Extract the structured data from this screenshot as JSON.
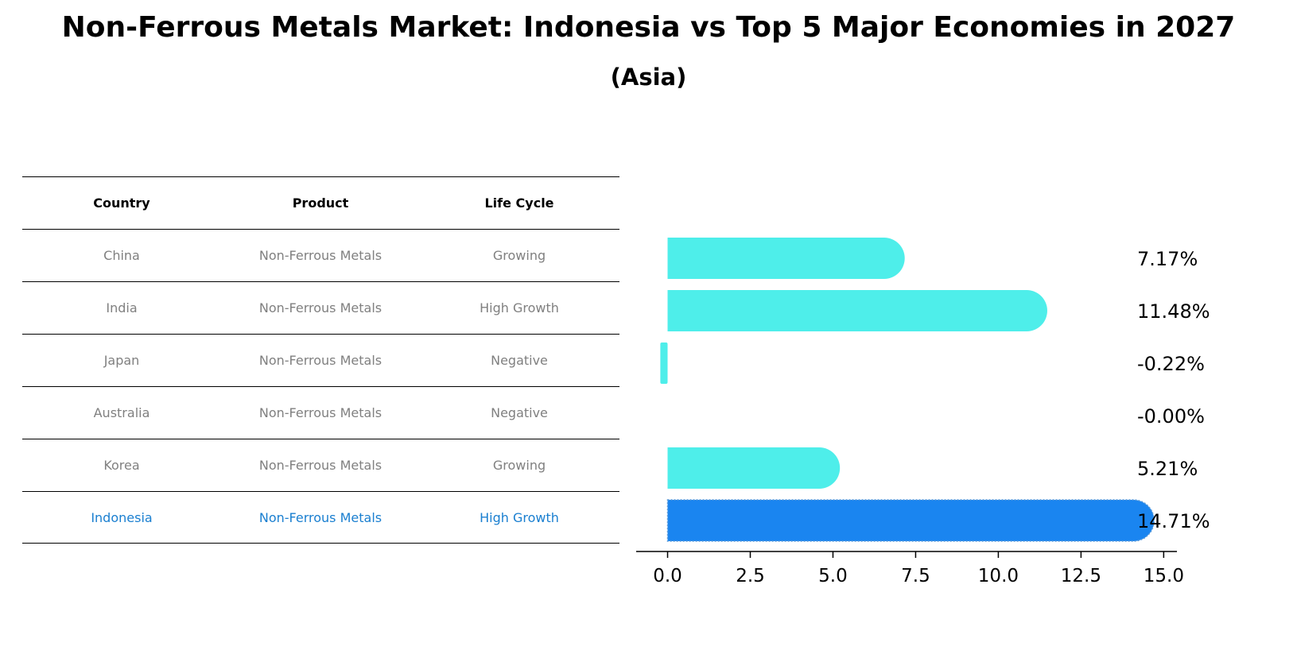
{
  "title": "Non-Ferrous Metals Market: Indonesia vs Top 5 Major Economies in 2027",
  "subtitle": "(Asia)",
  "table": {
    "headers": [
      "Country",
      "Product",
      "Life Cycle"
    ],
    "rows": [
      [
        "China",
        "Non-Ferrous Metals",
        "Growing"
      ],
      [
        "India",
        "Non-Ferrous Metals",
        "High Growth"
      ],
      [
        "Japan",
        "Non-Ferrous Metals",
        "Negative"
      ],
      [
        "Australia",
        "Non-Ferrous Metals",
        "Negative"
      ],
      [
        "Korea",
        "Non-Ferrous Metals",
        "Growing"
      ],
      [
        "Indonesia",
        "Non-Ferrous Metals",
        "High Growth"
      ]
    ]
  },
  "colors": {
    "bar": "#4eeeea",
    "highlight_bar": "#1a85f0",
    "highlight_text": "#1a7fd0",
    "muted_text": "#808080"
  },
  "chart_data": {
    "type": "bar",
    "orientation": "horizontal",
    "categories": [
      "China",
      "India",
      "Japan",
      "Australia",
      "Korea",
      "Indonesia"
    ],
    "values": [
      7.17,
      11.48,
      -0.22,
      -0.0,
      5.21,
      14.71
    ],
    "value_labels": [
      "7.17%",
      "11.48%",
      "-0.22%",
      "-0.00%",
      "5.21%",
      "14.71%"
    ],
    "highlight": "Indonesia",
    "xlim": [
      -0.95,
      15.4
    ],
    "xticks": [
      "0.0",
      "2.5",
      "5.0",
      "7.5",
      "10.0",
      "12.5",
      "15.0"
    ],
    "xtick_values": [
      0,
      2.5,
      5,
      7.5,
      10,
      12.5,
      15
    ],
    "title": "",
    "xlabel": "",
    "ylabel": "",
    "grid": false
  }
}
